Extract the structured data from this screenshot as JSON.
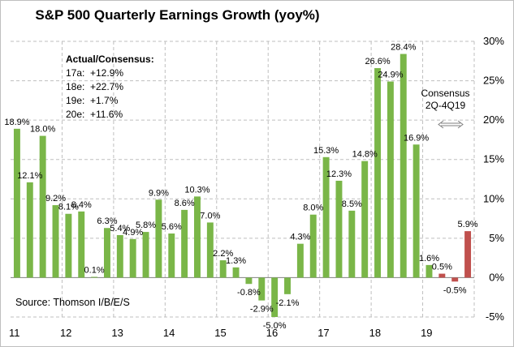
{
  "chart_data": {
    "type": "bar",
    "title": "S&P 500 Quarterly Earnings Growth (yoy%)",
    "categories": [
      "11Q1",
      "11Q2",
      "11Q3",
      "11Q4",
      "12Q1",
      "12Q2",
      "12Q3",
      "12Q4",
      "13Q1",
      "13Q2",
      "13Q3",
      "13Q4",
      "14Q1",
      "14Q2",
      "14Q3",
      "14Q4",
      "15Q1",
      "15Q2",
      "15Q3",
      "15Q4",
      "16Q1",
      "16Q2",
      "16Q3",
      "16Q4",
      "17Q1",
      "17Q2",
      "17Q3",
      "17Q4",
      "18Q1",
      "18Q2",
      "18Q3",
      "18Q4",
      "19Q1",
      "19Q2",
      "19Q3",
      "19Q4"
    ],
    "values": [
      18.9,
      12.1,
      18.0,
      9.2,
      8.1,
      8.4,
      0.1,
      6.3,
      5.4,
      4.9,
      5.8,
      9.9,
      5.6,
      8.6,
      10.3,
      7.0,
      2.2,
      1.3,
      -0.8,
      -2.9,
      -5.0,
      -2.1,
      4.3,
      8.0,
      15.3,
      12.3,
      8.5,
      14.8,
      26.6,
      24.9,
      28.4,
      16.9,
      1.6,
      0.5,
      -0.5,
      5.9
    ],
    "data_labels": [
      "18.9%",
      "12.1%",
      "18.0%",
      "9.2%",
      "8.1%",
      "8.4%",
      "0.1%",
      "6.3%",
      "5.4%",
      "4.9%",
      "5.8%",
      "9.9%",
      "5.6%",
      "8.6%",
      "10.3%",
      "7.0%",
      "2.2%",
      "1.3%",
      "-0.8%",
      "-2.9%",
      "-5.0%",
      "-2.1%",
      "4.3%",
      "8.0%",
      "15.3%",
      "12.3%",
      "8.5%",
      "14.8%",
      "26.6%",
      "24.9%",
      "28.4%",
      "16.9%",
      "1.6%",
      "0.5%",
      "-0.5%",
      "5.9%"
    ],
    "bar_colors": [
      "#7ab648",
      "#7ab648",
      "#7ab648",
      "#7ab648",
      "#7ab648",
      "#7ab648",
      "#7ab648",
      "#7ab648",
      "#7ab648",
      "#7ab648",
      "#7ab648",
      "#7ab648",
      "#7ab648",
      "#7ab648",
      "#7ab648",
      "#7ab648",
      "#7ab648",
      "#7ab648",
      "#7ab648",
      "#7ab648",
      "#7ab648",
      "#7ab648",
      "#7ab648",
      "#7ab648",
      "#7ab648",
      "#7ab648",
      "#7ab648",
      "#7ab648",
      "#7ab648",
      "#7ab648",
      "#7ab648",
      "#7ab648",
      "#7ab648",
      "#c0504d",
      "#c0504d",
      "#c0504d"
    ],
    "x_tick_labels": [
      "11",
      "12",
      "13",
      "14",
      "15",
      "16",
      "17",
      "18",
      "19"
    ],
    "y_tick_labels": [
      "-5%",
      "0%",
      "5%",
      "10%",
      "15%",
      "20%",
      "25%",
      "30%"
    ],
    "y_ticks": [
      -5,
      0,
      5,
      10,
      15,
      20,
      25,
      30
    ],
    "ylim": [
      -5,
      30
    ],
    "y_axis_side": "right",
    "grid": "dashed",
    "xlabel": "",
    "ylabel": ""
  },
  "annotations": {
    "actual_consensus": {
      "header": "Actual/Consensus:",
      "rows": [
        {
          "key": "17a:",
          "value": "+12.9%"
        },
        {
          "key": "18e:",
          "value": "+22.7%"
        },
        {
          "key": "19e:",
          "value": "+1.7%"
        },
        {
          "key": "20e:",
          "value": "+11.6%"
        }
      ]
    },
    "source": "Source:  Thomson I/B/E/S",
    "consensus_line1": "Consensus",
    "consensus_line2": "2Q-4Q19",
    "consensus_arrow_icon": "double-arrow-icon"
  },
  "colors": {
    "actual_bar": "#7ab648",
    "consensus_bar": "#c0504d",
    "grid": "#bfbfbf"
  }
}
